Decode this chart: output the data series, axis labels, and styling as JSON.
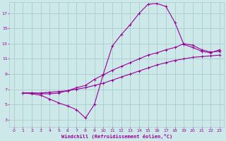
{
  "bg_color": "#cce8e8",
  "line_color": "#990099",
  "grid_color": "#aacccc",
  "xlabel": "Windchill (Refroidissement éolien,°C)",
  "xlim": [
    -0.5,
    23.5
  ],
  "ylim": [
    2,
    18.5
  ],
  "xticks": [
    0,
    1,
    2,
    3,
    4,
    5,
    6,
    7,
    8,
    9,
    10,
    11,
    12,
    13,
    14,
    15,
    16,
    17,
    18,
    19,
    20,
    21,
    22,
    23
  ],
  "yticks": [
    3,
    5,
    7,
    9,
    11,
    13,
    15,
    17
  ],
  "lines": [
    {
      "x": [
        1,
        2,
        3,
        4,
        5,
        6,
        7,
        8,
        9,
        10,
        11,
        12,
        13,
        14,
        15,
        16,
        17,
        18,
        19,
        20,
        21,
        22,
        23
      ],
      "y": [
        6.5,
        6.4,
        6.2,
        5.7,
        5.2,
        4.8,
        4.3,
        3.2,
        5.0,
        9.0,
        12.7,
        14.2,
        15.5,
        17.0,
        18.2,
        18.3,
        17.9,
        15.8,
        12.9,
        12.5,
        12.0,
        11.8,
        12.2
      ]
    },
    {
      "x": [
        1,
        2,
        3,
        4,
        5,
        6,
        7,
        8,
        9,
        10,
        11,
        12,
        13,
        14,
        15,
        16,
        17,
        18,
        19,
        20,
        21,
        22,
        23
      ],
      "y": [
        6.5,
        6.5,
        6.4,
        6.4,
        6.5,
        6.8,
        7.2,
        7.5,
        8.3,
        8.9,
        9.5,
        10.0,
        10.5,
        11.0,
        11.5,
        11.8,
        12.2,
        12.5,
        13.0,
        12.8,
        12.2,
        11.9,
        12.0
      ]
    },
    {
      "x": [
        1,
        2,
        3,
        4,
        5,
        6,
        7,
        8,
        9,
        10,
        11,
        12,
        13,
        14,
        15,
        16,
        17,
        18,
        19,
        20,
        21,
        22,
        23
      ],
      "y": [
        6.5,
        6.5,
        6.5,
        6.6,
        6.7,
        6.8,
        7.0,
        7.2,
        7.5,
        7.8,
        8.2,
        8.6,
        9.0,
        9.4,
        9.8,
        10.2,
        10.5,
        10.8,
        11.0,
        11.2,
        11.3,
        11.4,
        11.5
      ]
    }
  ]
}
